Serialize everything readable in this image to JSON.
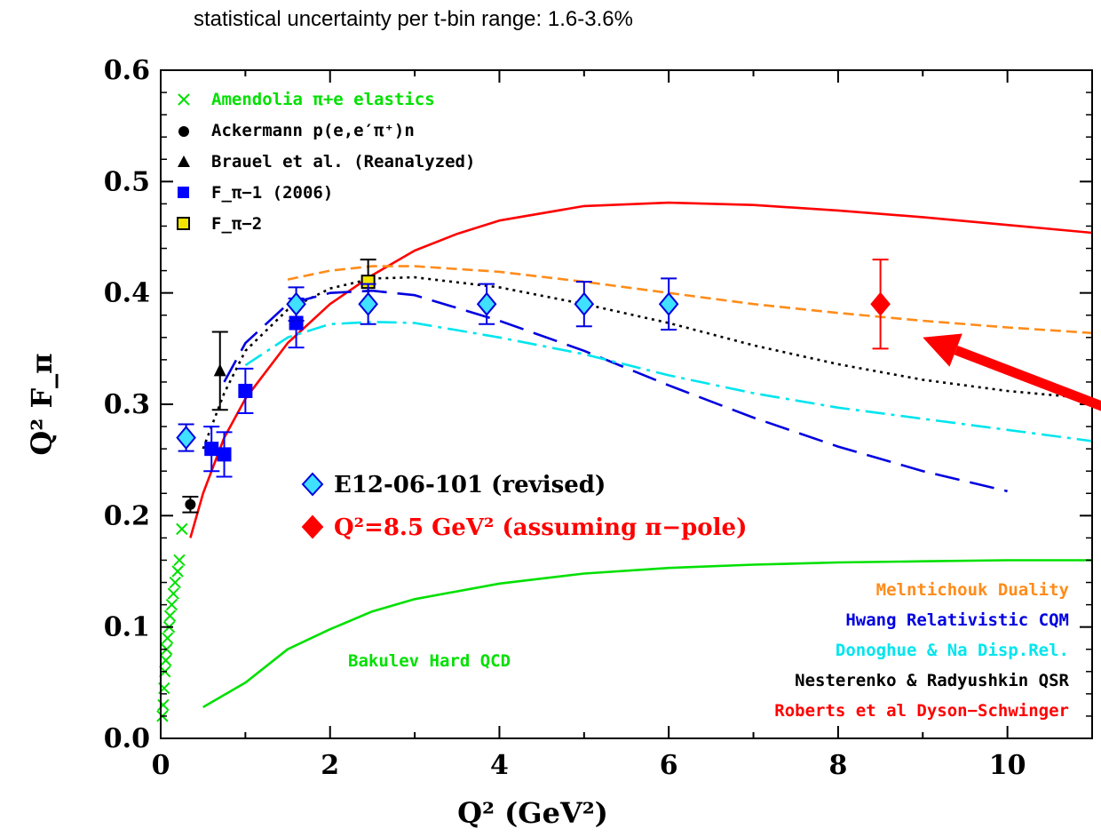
{
  "caption": "statistical uncertainty per t-bin range: 1.6-3.6%",
  "chart_data": {
    "type": "scatter",
    "xlabel": "Q² (GeV²)",
    "ylabel": "Q² F_π",
    "xlim": [
      0,
      11
    ],
    "ylim": [
      0,
      0.6
    ],
    "x_ticks": [
      "0",
      "2",
      "4",
      "6",
      "8",
      "10"
    ],
    "y_ticks": [
      "0.0",
      "0.1",
      "0.2",
      "0.3",
      "0.4",
      "0.5",
      "0.6"
    ],
    "legend_top": [
      {
        "label": "Amendolia π+e elastics",
        "color": "#00e000",
        "marker": "×"
      },
      {
        "label": "Ackermann p(e,e′π⁺)n",
        "color": "#000000",
        "marker": "●"
      },
      {
        "label": "Brauel et al. (Reanalyzed)",
        "color": "#000000",
        "marker": "▲"
      },
      {
        "label": "F_π−1 (2006)",
        "color": "#0000ff",
        "marker": "■"
      },
      {
        "label": "F_π−2",
        "color": "#f2e600",
        "marker": "□"
      }
    ],
    "legend_mid": [
      {
        "label": "E12-06-101 (revised)",
        "color": "#40e0ff"
      },
      {
        "label": "Q²=8.5 GeV² (assuming π−pole)",
        "color": "#ff0000"
      }
    ],
    "legend_curves": [
      {
        "label": "Melntichouk Duality",
        "color": "#ff8c1a"
      },
      {
        "label": "Hwang Relativistic CQM",
        "color": "#0000e0"
      },
      {
        "label": "Donoghue & Na Disp.Rel.",
        "color": "#00e5ee"
      },
      {
        "label": "Nesterenko & Radyushkin QSR",
        "color": "#000000"
      },
      {
        "label": "Roberts et al Dyson−Schwinger",
        "color": "#ff0000"
      }
    ],
    "curve_label": {
      "label": "Bakulev Hard QCD",
      "color": "#00e000"
    },
    "series": [
      {
        "name": "Amendolia π+e elastics",
        "marker": "cross",
        "color": "#00e000",
        "points": [
          [
            0.02,
            0.02
          ],
          [
            0.03,
            0.03
          ],
          [
            0.04,
            0.045
          ],
          [
            0.05,
            0.06
          ],
          [
            0.06,
            0.07
          ],
          [
            0.07,
            0.08
          ],
          [
            0.08,
            0.09
          ],
          [
            0.1,
            0.1
          ],
          [
            0.11,
            0.11
          ],
          [
            0.13,
            0.12
          ],
          [
            0.15,
            0.13
          ],
          [
            0.17,
            0.14
          ],
          [
            0.2,
            0.15
          ],
          [
            0.22,
            0.16
          ],
          [
            0.25,
            0.188
          ]
        ]
      },
      {
        "name": "Ackermann p(e,e′π⁺)n",
        "marker": "circle",
        "color": "#000000",
        "points": [
          [
            0.35,
            0.21,
            0.007
          ]
        ]
      },
      {
        "name": "Brauel et al. (Reanalyzed)",
        "marker": "triangle",
        "color": "#000000",
        "points": [
          [
            0.7,
            0.33,
            0.035
          ]
        ]
      },
      {
        "name": "F_π−1 (2006)",
        "marker": "square",
        "color": "#0000ff",
        "points": [
          [
            0.6,
            0.26,
            0.02
          ],
          [
            0.75,
            0.255,
            0.02
          ],
          [
            1.0,
            0.312,
            0.02
          ],
          [
            1.6,
            0.373,
            0.022
          ]
        ]
      },
      {
        "name": "F_π−2",
        "marker": "square",
        "color": "#f2e600",
        "points": [
          [
            2.45,
            0.41,
            0.02
          ]
        ]
      },
      {
        "name": "E12-06-101 (revised)",
        "marker": "diamond",
        "color": "#40e0ff",
        "points": [
          [
            0.3,
            0.27,
            0.012
          ],
          [
            1.6,
            0.39,
            0.015
          ],
          [
            2.45,
            0.39,
            0.018
          ],
          [
            3.85,
            0.39,
            0.018
          ],
          [
            5.0,
            0.39,
            0.02
          ],
          [
            6.0,
            0.39,
            0.023
          ]
        ]
      },
      {
        "name": "Q²=8.5 GeV² (assuming π−pole)",
        "marker": "diamond",
        "color": "#ff0000",
        "points": [
          [
            8.5,
            0.39,
            0.04
          ]
        ]
      }
    ],
    "curves": [
      {
        "name": "Roberts et al Dyson−Schwinger",
        "style": "solid",
        "color": "#ff0000",
        "points": [
          [
            0.35,
            0.18
          ],
          [
            0.5,
            0.22
          ],
          [
            0.75,
            0.27
          ],
          [
            1,
            0.305
          ],
          [
            1.5,
            0.355
          ],
          [
            2,
            0.39
          ],
          [
            2.5,
            0.416
          ],
          [
            3,
            0.438
          ],
          [
            3.5,
            0.453
          ],
          [
            4,
            0.465
          ],
          [
            5,
            0.478
          ],
          [
            6,
            0.481
          ],
          [
            7,
            0.479
          ],
          [
            8,
            0.474
          ],
          [
            9,
            0.468
          ],
          [
            10,
            0.461
          ],
          [
            11,
            0.454
          ]
        ]
      },
      {
        "name": "Melntichouk Duality",
        "style": "dashed",
        "color": "#ff8c1a",
        "points": [
          [
            1.5,
            0.412
          ],
          [
            2,
            0.42
          ],
          [
            2.5,
            0.424
          ],
          [
            3,
            0.424
          ],
          [
            4,
            0.419
          ],
          [
            5,
            0.41
          ],
          [
            6,
            0.4
          ],
          [
            7,
            0.39
          ],
          [
            8,
            0.382
          ],
          [
            9,
            0.375
          ],
          [
            10,
            0.369
          ],
          [
            11,
            0.364
          ]
        ]
      },
      {
        "name": "Nesterenko & Radyushkin QSR",
        "style": "dotted",
        "color": "#000000",
        "points": [
          [
            0.5,
            0.26
          ],
          [
            0.75,
            0.31
          ],
          [
            1,
            0.348
          ],
          [
            1.5,
            0.385
          ],
          [
            2,
            0.404
          ],
          [
            2.5,
            0.413
          ],
          [
            3,
            0.414
          ],
          [
            4,
            0.405
          ],
          [
            5,
            0.39
          ],
          [
            6,
            0.373
          ],
          [
            7,
            0.353
          ],
          [
            8,
            0.336
          ],
          [
            9,
            0.322
          ],
          [
            10,
            0.312
          ],
          [
            11,
            0.305
          ]
        ]
      },
      {
        "name": "Hwang Relativistic CQM",
        "style": "longdash",
        "color": "#0000e0",
        "points": [
          [
            0.75,
            0.32
          ],
          [
            1,
            0.355
          ],
          [
            1.5,
            0.39
          ],
          [
            2,
            0.4
          ],
          [
            2.5,
            0.402
          ],
          [
            3,
            0.398
          ],
          [
            4,
            0.375
          ],
          [
            5,
            0.348
          ],
          [
            6,
            0.317
          ],
          [
            7,
            0.288
          ],
          [
            8,
            0.262
          ],
          [
            9,
            0.24
          ],
          [
            10,
            0.222
          ]
        ]
      },
      {
        "name": "Donoghue & Na Disp.Rel.",
        "style": "dashdot",
        "color": "#00e5ee",
        "points": [
          [
            1,
            0.335
          ],
          [
            1.5,
            0.36
          ],
          [
            2,
            0.372
          ],
          [
            2.5,
            0.374
          ],
          [
            3,
            0.373
          ],
          [
            4,
            0.36
          ],
          [
            5,
            0.345
          ],
          [
            6,
            0.326
          ],
          [
            7,
            0.31
          ],
          [
            8,
            0.297
          ],
          [
            9,
            0.287
          ],
          [
            10,
            0.277
          ],
          [
            11,
            0.267
          ]
        ]
      },
      {
        "name": "Bakulev Hard QCD",
        "style": "solid",
        "color": "#00e000",
        "points": [
          [
            0.5,
            0.028
          ],
          [
            1,
            0.05
          ],
          [
            1.5,
            0.08
          ],
          [
            2,
            0.098
          ],
          [
            2.5,
            0.114
          ],
          [
            3,
            0.125
          ],
          [
            4,
            0.139
          ],
          [
            5,
            0.148
          ],
          [
            6,
            0.153
          ],
          [
            7,
            0.156
          ],
          [
            8,
            0.158
          ],
          [
            9,
            0.159
          ],
          [
            10,
            0.16
          ],
          [
            11,
            0.16
          ]
        ]
      }
    ],
    "annotation_arrow": {
      "color": "#ff0000",
      "from": [
        11.4,
        0.29
      ],
      "to": [
        9.0,
        0.36
      ]
    }
  }
}
